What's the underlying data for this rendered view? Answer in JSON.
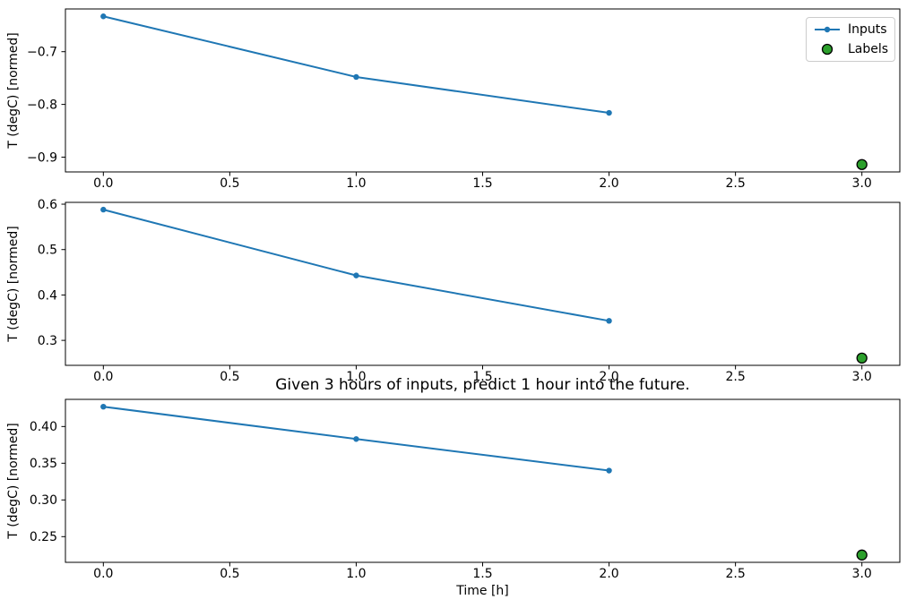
{
  "figure": {
    "background": "#ffffff",
    "title": "Given 3 hours of inputs, predict 1 hour into the future.",
    "xlabel": "Time [h]",
    "legend": {
      "items": [
        {
          "label": "Inputs",
          "type": "line-marker",
          "color": "#1f77b4"
        },
        {
          "label": "Labels",
          "type": "circle",
          "color": "#2ca02c",
          "edge": "#000000"
        }
      ]
    }
  },
  "chart_data": [
    {
      "type": "line",
      "ylabel": "T (degC) [normed]",
      "series": [
        {
          "name": "Inputs",
          "style": "line+dot",
          "color": "#1f77b4",
          "x": [
            0,
            1,
            2
          ],
          "y": [
            -0.633,
            -0.748,
            -0.816
          ]
        },
        {
          "name": "Labels",
          "style": "scatter",
          "color": "#2ca02c",
          "edge": "#000000",
          "x": [
            3
          ],
          "y": [
            -0.914
          ]
        }
      ],
      "xlim": [
        -0.15,
        3.15
      ],
      "ylim": [
        -0.928,
        -0.619
      ],
      "xticks": {
        "values": [
          0,
          0.5,
          1,
          1.5,
          2,
          2.5,
          3
        ],
        "labels": [
          "0.0",
          "0.5",
          "1.0",
          "1.5",
          "2.0",
          "2.5",
          "3.0"
        ]
      },
      "yticks": {
        "values": [
          -0.7,
          -0.8,
          -0.9
        ],
        "labels": [
          "−0.7",
          "−0.8",
          "−0.9"
        ]
      },
      "grid": false
    },
    {
      "type": "line",
      "ylabel": "T (degC) [normed]",
      "series": [
        {
          "name": "Inputs",
          "style": "line+dot",
          "color": "#1f77b4",
          "x": [
            0,
            1,
            2
          ],
          "y": [
            0.588,
            0.443,
            0.343
          ]
        },
        {
          "name": "Labels",
          "style": "scatter",
          "color": "#2ca02c",
          "edge": "#000000",
          "x": [
            3
          ],
          "y": [
            0.261
          ]
        }
      ],
      "xlim": [
        -0.15,
        3.15
      ],
      "ylim": [
        0.245,
        0.604
      ],
      "xticks": {
        "values": [
          0,
          0.5,
          1,
          1.5,
          2,
          2.5,
          3
        ],
        "labels": [
          "0.0",
          "0.5",
          "1.0",
          "1.5",
          "2.0",
          "2.5",
          "3.0"
        ]
      },
      "yticks": {
        "values": [
          0.3,
          0.4,
          0.5,
          0.6
        ],
        "labels": [
          "0.3",
          "0.4",
          "0.5",
          "0.6"
        ]
      },
      "grid": false
    },
    {
      "type": "line",
      "ylabel": "T (degC) [normed]",
      "series": [
        {
          "name": "Inputs",
          "style": "line+dot",
          "color": "#1f77b4",
          "x": [
            0,
            1,
            2
          ],
          "y": [
            0.427,
            0.383,
            0.34
          ]
        },
        {
          "name": "Labels",
          "style": "scatter",
          "color": "#2ca02c",
          "edge": "#000000",
          "x": [
            3
          ],
          "y": [
            0.225
          ]
        }
      ],
      "xlim": [
        -0.15,
        3.15
      ],
      "ylim": [
        0.215,
        0.437
      ],
      "xticks": {
        "values": [
          0,
          0.5,
          1,
          1.5,
          2,
          2.5,
          3
        ],
        "labels": [
          "0.0",
          "0.5",
          "1.0",
          "1.5",
          "2.0",
          "2.5",
          "3.0"
        ]
      },
      "yticks": {
        "values": [
          0.25,
          0.3,
          0.35,
          0.4
        ],
        "labels": [
          "0.25",
          "0.30",
          "0.35",
          "0.40"
        ]
      },
      "grid": false
    }
  ]
}
